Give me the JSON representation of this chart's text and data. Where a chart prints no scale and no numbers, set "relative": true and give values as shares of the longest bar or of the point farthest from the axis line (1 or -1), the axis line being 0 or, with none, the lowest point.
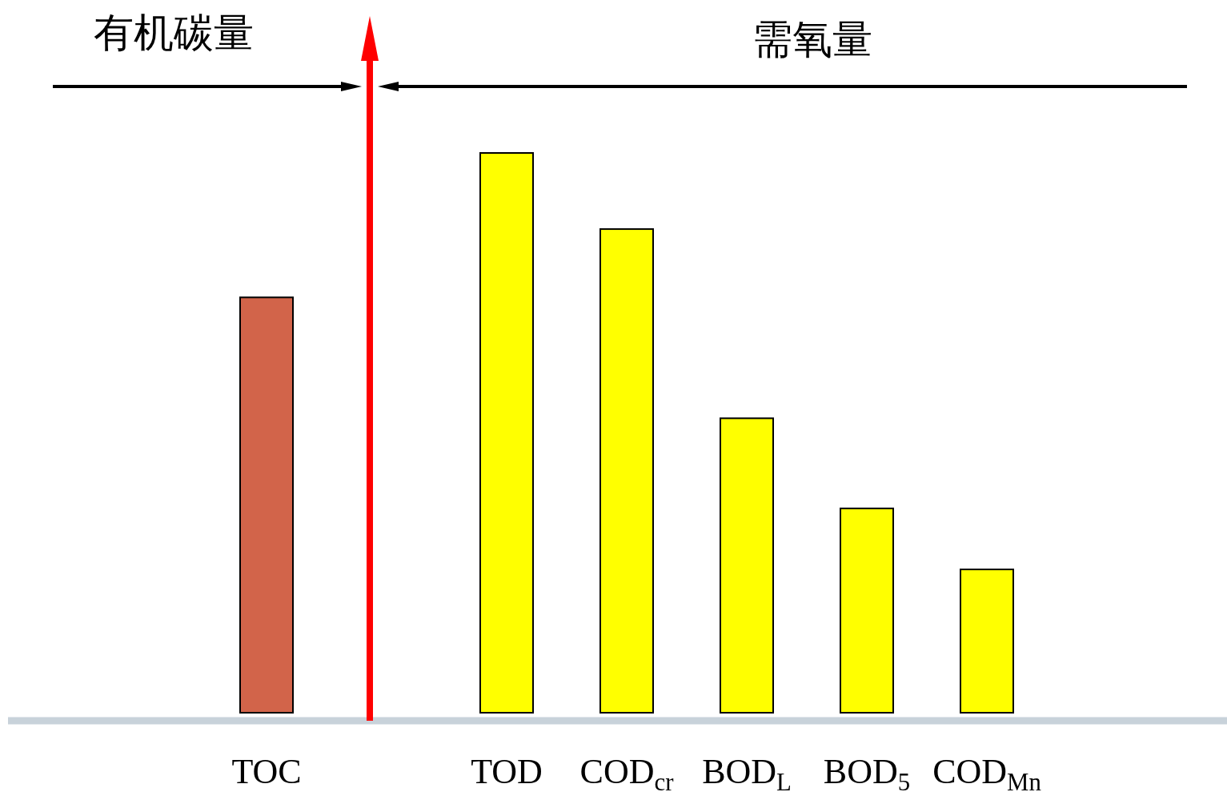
{
  "chart_data": {
    "type": "bar",
    "relative": true,
    "categories": [
      "TOC",
      null,
      "TOD",
      "COD$_{cr}$",
      "BOD$_{L}$",
      "BOD$_{5}$",
      "COD$_{Mn}$"
    ],
    "values": [
      0.742,
      null,
      1,
      0.864,
      0.526,
      0.365,
      0.256
    ],
    "colors": [
      "#d2644a",
      null,
      "#ffff00",
      "#ffff00",
      "#ffff00",
      "#ffff00",
      "#ffff00"
    ],
    "annotations": [
      "有机碳量",
      "需氧量"
    ]
  }
}
